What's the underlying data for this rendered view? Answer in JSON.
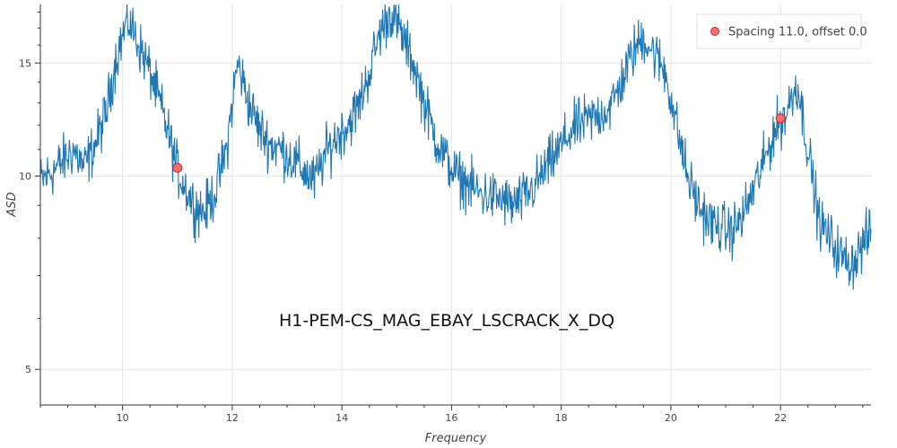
{
  "chart_data": {
    "type": "line",
    "title": "",
    "annotation": "H1-PEM-CS_MAG_EBAY_LSCRACK_X_DQ",
    "xlabel": "Frequency",
    "ylabel": "ASD",
    "xlim": [
      8.5,
      23.65
    ],
    "ylim": [
      4.4,
      18.5
    ],
    "y_scale": "log",
    "grid": true,
    "x_ticks": [
      10,
      12,
      14,
      16,
      18,
      20,
      22
    ],
    "y_ticks": [
      5,
      10,
      15
    ],
    "legend": {
      "position": "top-right",
      "entries": [
        "Spacing 11.0, offset 0.0"
      ]
    },
    "colors": {
      "line": "#1f77b4",
      "marker_fill": "#f26d6d",
      "marker_stroke": "#d62728",
      "grid": "#e5e5e5",
      "axis": "#333333"
    },
    "series": [
      {
        "type": "line",
        "x": [
          8.5,
          8.9,
          9.1,
          9.3,
          9.5,
          9.7,
          9.9,
          10.1,
          10.3,
          10.5,
          10.7,
          11.0,
          11.3,
          11.5,
          11.7,
          11.9,
          12.1,
          12.3,
          12.5,
          12.7,
          12.9,
          13.1,
          13.3,
          13.5,
          13.7,
          13.9,
          14.1,
          14.3,
          14.5,
          14.7,
          14.9,
          15.1,
          15.3,
          15.5,
          15.7,
          15.9,
          16.1,
          16.3,
          16.5,
          16.7,
          16.9,
          17.1,
          17.3,
          17.5,
          17.7,
          17.9,
          18.1,
          18.3,
          18.5,
          18.7,
          18.9,
          19.1,
          19.3,
          19.5,
          19.7,
          19.9,
          20.1,
          20.3,
          20.5,
          20.7,
          20.9,
          21.1,
          21.3,
          21.5,
          21.7,
          21.9,
          22.1,
          22.3,
          22.5,
          22.7,
          22.9,
          23.1,
          23.3,
          23.5,
          23.65
        ],
        "y": [
          9.8,
          10.5,
          11.0,
          10.3,
          11.2,
          12.5,
          15.5,
          17.5,
          16.0,
          14.5,
          12.8,
          10.2,
          9.0,
          8.8,
          9.5,
          11.0,
          15.0,
          13.0,
          11.8,
          11.2,
          11.0,
          10.6,
          10.2,
          9.8,
          10.8,
          11.5,
          12.0,
          12.8,
          14.5,
          16.8,
          18.0,
          16.5,
          15.0,
          13.0,
          11.5,
          10.6,
          10.0,
          9.7,
          9.4,
          9.3,
          9.2,
          9.0,
          9.2,
          9.6,
          10.2,
          10.8,
          11.5,
          12.0,
          12.2,
          12.5,
          12.8,
          14.0,
          15.5,
          16.5,
          15.5,
          14.5,
          12.0,
          10.0,
          9.0,
          8.5,
          8.3,
          8.2,
          8.6,
          9.5,
          10.5,
          11.8,
          12.5,
          14.0,
          11.0,
          8.5,
          8.0,
          7.5,
          7.3,
          7.8,
          8.2
        ]
      },
      {
        "type": "scatter",
        "name": "Spacing 11.0, offset 0.0",
        "x": [
          11.0,
          22.0
        ],
        "y": [
          10.3,
          12.3
        ]
      }
    ]
  }
}
